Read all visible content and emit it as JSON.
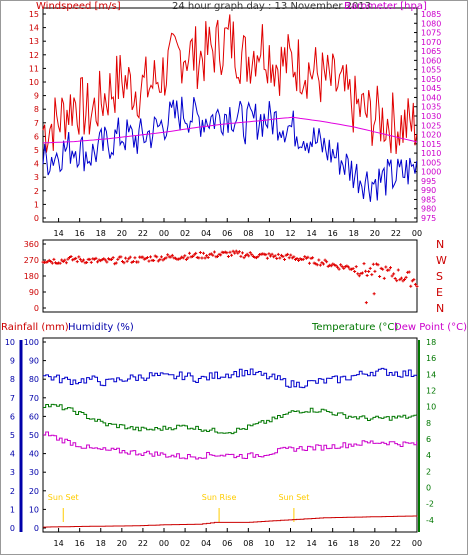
{
  "chart_data": [
    {
      "type": "line",
      "title": "24 hour graph day : 13 November 2013",
      "left_axis_label": "Windspeed [m/s]",
      "right_axis_label": "Barometer [hpa]",
      "left_ylim": [
        0,
        15
      ],
      "left_ticks": [
        "0",
        "1",
        "2",
        "3",
        "4",
        "5",
        "6",
        "7",
        "8",
        "9",
        "10",
        "11",
        "12",
        "13",
        "14",
        "15"
      ],
      "right_ylim": [
        975,
        1085
      ],
      "right_ticks": [
        "975",
        "980",
        "985",
        "990",
        "995",
        "1000",
        "1005",
        "1010",
        "1015",
        "1020",
        "1025",
        "1030",
        "1035",
        "1040",
        "1045",
        "1050",
        "1055",
        "1060",
        "1065",
        "1070",
        "1075",
        "1080",
        "1085"
      ],
      "x_ticks": [
        "14",
        "16",
        "18",
        "20",
        "22",
        "00",
        "02",
        "04",
        "06",
        "08",
        "10",
        "12",
        "14",
        "16",
        "18",
        "20",
        "22",
        "00"
      ],
      "colors": {
        "gust": "#e00000",
        "average": "#0000cc",
        "barometer": "#e000e0",
        "left_axis": "#cc0000",
        "right_axis": "#cc00cc"
      },
      "series": [
        {
          "key": "gust",
          "x": [
            0,
            2,
            4,
            6,
            8,
            10,
            12,
            14,
            16,
            18,
            20,
            22,
            24,
            26,
            28,
            30,
            32,
            34,
            36,
            38,
            40,
            42,
            44,
            46,
            48
          ],
          "values": [
            6.5,
            7.2,
            8.6,
            7.6,
            9.0,
            10.2,
            9.5,
            9.8,
            11.0,
            12.3,
            11.8,
            12.5,
            13.2,
            11.6,
            13.0,
            11.3,
            11.5,
            11.0,
            10.2,
            9.6,
            8.2,
            7.5,
            7.2,
            6.8,
            6.9
          ]
        },
        {
          "key": "average",
          "x": [
            0,
            2,
            4,
            6,
            8,
            10,
            12,
            14,
            16,
            18,
            20,
            22,
            24,
            26,
            28,
            30,
            32,
            34,
            36,
            38,
            40,
            42,
            44,
            46,
            48
          ],
          "values": [
            4.2,
            4.8,
            5.3,
            4.6,
            5.4,
            6.1,
            5.8,
            6.3,
            7.2,
            7.8,
            7.3,
            7.4,
            7.8,
            6.9,
            7.3,
            7.2,
            6.6,
            6.0,
            5.2,
            4.4,
            3.3,
            2.6,
            2.9,
            3.2,
            3.8
          ]
        },
        {
          "key": "barometer",
          "x": [
            0,
            4,
            8,
            12,
            16,
            20,
            24,
            28,
            30,
            32,
            36,
            40,
            44,
            48
          ],
          "values": [
            1015.5,
            1016.2,
            1017.6,
            1019.5,
            1021.5,
            1024.0,
            1026.0,
            1027.5,
            1028.5,
            1029.3,
            1027.0,
            1024.0,
            1020.0,
            1016.0
          ]
        }
      ]
    },
    {
      "type": "scatter",
      "left_ticks": [
        "0",
        "90",
        "180",
        "270",
        "360"
      ],
      "ylim": [
        0,
        360
      ],
      "compass": [
        "N",
        "W",
        "S",
        "E",
        "N"
      ],
      "color": "#e00000",
      "x": [
        0,
        2,
        4,
        6,
        8,
        10,
        12,
        14,
        16,
        18,
        20,
        22,
        24,
        26,
        28,
        30,
        32,
        34,
        36,
        38,
        40,
        41,
        42,
        43,
        44,
        45,
        46,
        47,
        48
      ],
      "values": [
        270,
        265,
        275,
        268,
        262,
        270,
        272,
        280,
        285,
        290,
        295,
        300,
        305,
        300,
        295,
        290,
        285,
        270,
        255,
        235,
        225,
        215,
        205,
        210,
        200,
        190,
        180,
        165,
        150
      ],
      "outliers": [
        {
          "x": 41.5,
          "y": 30
        },
        {
          "x": 42.5,
          "y": 80
        }
      ]
    },
    {
      "type": "line",
      "left_label_1": "Rainfall (mm)",
      "left_label_2": "Humidity (%)",
      "right_label_1": "Temperature (°C)",
      "right_label_2": "Dew Point (°C)",
      "rain_ticks": [
        "0",
        "1",
        "2",
        "3",
        "4",
        "5",
        "6",
        "7",
        "8",
        "9",
        "10"
      ],
      "humidity_ticks": [
        "0",
        "10",
        "20",
        "30",
        "40",
        "50",
        "60",
        "70",
        "80",
        "90",
        "100"
      ],
      "temp_ticks": [
        "-4",
        "-2",
        "0",
        "2",
        "4",
        "6",
        "8",
        "10",
        "12",
        "14",
        "16",
        "18"
      ],
      "humidity_ylim": [
        0,
        100
      ],
      "temp_ylim": [
        -5,
        18
      ],
      "x_ticks": [
        "14",
        "16",
        "18",
        "20",
        "22",
        "00",
        "02",
        "04",
        "06",
        "08",
        "10",
        "12",
        "14",
        "16",
        "18",
        "20",
        "22",
        "00"
      ],
      "sun_labels": [
        {
          "text": "Sun Set",
          "x": 2.6
        },
        {
          "text": "Sun Rise",
          "x": 22.6
        },
        {
          "text": "Sun Set",
          "x": 32.2
        }
      ],
      "colors": {
        "rain": "#cc0000",
        "humidity": "#0000cc",
        "temperature": "#007700",
        "dewpoint": "#cc00cc",
        "sun": "#ffcc00"
      },
      "series": [
        {
          "key": "humidity",
          "x": [
            0,
            2,
            4,
            6,
            8,
            10,
            12,
            14,
            16,
            18,
            20,
            22,
            24,
            26,
            28,
            30,
            32,
            34,
            36,
            38,
            40,
            42,
            44,
            46,
            48
          ],
          "values": [
            82,
            80,
            79,
            80,
            78,
            80,
            81,
            82,
            81,
            82,
            80,
            82,
            83,
            84,
            82,
            80,
            77,
            78,
            79,
            80,
            82,
            84,
            84,
            83,
            83
          ]
        },
        {
          "key": "temperature",
          "x": [
            0,
            2,
            4,
            6,
            8,
            10,
            12,
            14,
            16,
            18,
            20,
            22,
            24,
            26,
            28,
            30,
            32,
            34,
            36,
            38,
            40,
            42,
            44,
            46,
            48
          ],
          "values": [
            10.2,
            10.0,
            9.4,
            8.6,
            7.8,
            7.6,
            7.2,
            7.2,
            7.4,
            7.6,
            7.3,
            7.0,
            6.9,
            7.4,
            8.0,
            8.6,
            9.4,
            9.6,
            9.5,
            9.0,
            8.7,
            8.5,
            8.6,
            8.7,
            8.8
          ]
        },
        {
          "key": "dewpoint",
          "x": [
            0,
            2,
            4,
            6,
            8,
            10,
            12,
            14,
            16,
            18,
            20,
            22,
            24,
            26,
            28,
            30,
            32,
            34,
            36,
            38,
            40,
            42,
            44,
            46,
            48
          ],
          "values": [
            6.8,
            6.0,
            5.4,
            4.8,
            4.6,
            4.5,
            4.3,
            4.2,
            4.0,
            3.8,
            3.9,
            4.1,
            4.0,
            3.9,
            4.1,
            4.5,
            4.8,
            4.9,
            5.0,
            5.2,
            5.4,
            5.6,
            5.6,
            5.4,
            5.4
          ]
        },
        {
          "key": "rain",
          "x": [
            0,
            4,
            8,
            12,
            16,
            20,
            22,
            24,
            26,
            30,
            36,
            42,
            48
          ],
          "values": [
            0.05,
            0.08,
            0.1,
            0.12,
            0.18,
            0.2,
            0.3,
            0.3,
            0.3,
            0.4,
            0.55,
            0.6,
            0.65
          ]
        }
      ]
    }
  ]
}
